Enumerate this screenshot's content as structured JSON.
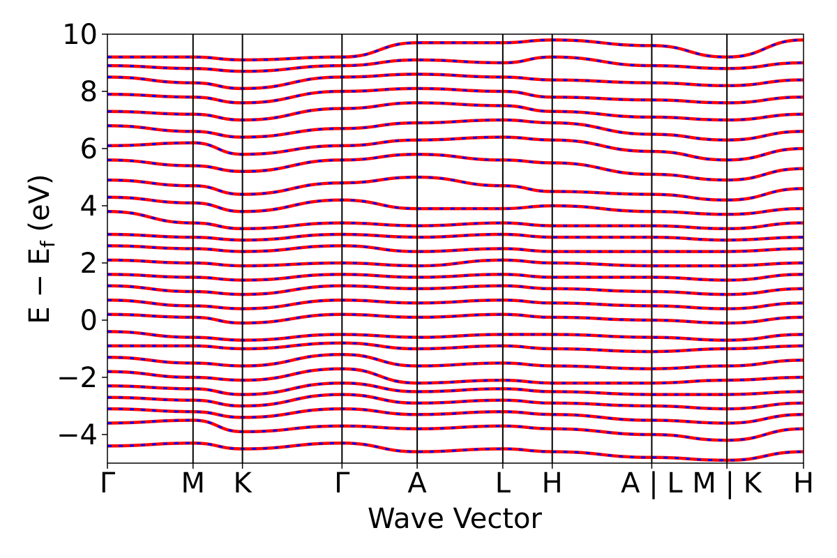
{
  "chart_data": {
    "type": "line",
    "title": "",
    "xlabel": "Wave Vector",
    "ylabel": "E − E_f (eV)",
    "ylabel_main": "E − E",
    "ylabel_sub": "f",
    "ylabel_unit": " (eV)",
    "ylim": [
      -5,
      10
    ],
    "yticks": [
      -4,
      -2,
      0,
      2,
      4,
      6,
      8,
      10
    ],
    "ytick_labels": [
      "−4",
      "−2",
      "0",
      "2",
      "4",
      "6",
      "8",
      "10"
    ],
    "xlim": [
      0,
      1
    ],
    "kpath": [
      {
        "x": 0.0,
        "label": "Γ"
      },
      {
        "x": 0.123,
        "label": "M"
      },
      {
        "x": 0.194,
        "label": "K"
      },
      {
        "x": 0.337,
        "label": "Γ"
      },
      {
        "x": 0.445,
        "label": "A"
      },
      {
        "x": 0.568,
        "label": "L"
      },
      {
        "x": 0.639,
        "label": "H"
      },
      {
        "x": 0.782,
        "label": "A | L"
      },
      {
        "x": 0.89,
        "label": "M | K"
      },
      {
        "x": 1.0,
        "label": "H"
      }
    ],
    "grid": false,
    "legend": "none",
    "colors": {
      "spin_up": "#0000ff",
      "spin_down": "#ff0000",
      "axes": "#000000"
    },
    "series": [
      {
        "x": [
          0.0,
          0.123,
          0.194,
          0.337,
          0.445,
          0.568,
          0.639,
          0.782,
          0.89,
          1.0
        ],
        "y": [
          -4.4,
          -4.3,
          -4.5,
          -4.3,
          -4.6,
          -4.5,
          -4.6,
          -4.8,
          -4.9,
          -4.6
        ]
      },
      {
        "x": [
          0.0,
          0.123,
          0.194,
          0.337,
          0.445,
          0.568,
          0.639,
          0.782,
          0.89,
          1.0
        ],
        "y": [
          -3.6,
          -3.5,
          -3.9,
          -3.7,
          -3.8,
          -3.7,
          -3.8,
          -4.0,
          -4.2,
          -3.8
        ]
      },
      {
        "x": [
          0.0,
          0.123,
          0.194,
          0.337,
          0.445,
          0.568,
          0.639,
          0.782,
          0.89,
          1.0
        ],
        "y": [
          -3.1,
          -3.2,
          -3.4,
          -3.1,
          -3.3,
          -3.2,
          -3.3,
          -3.5,
          -3.6,
          -3.3
        ]
      },
      {
        "x": [
          0.0,
          0.123,
          0.194,
          0.337,
          0.445,
          0.568,
          0.639,
          0.782,
          0.89,
          1.0
        ],
        "y": [
          -2.7,
          -2.8,
          -3.0,
          -2.6,
          -2.9,
          -2.8,
          -2.9,
          -3.0,
          -3.1,
          -2.9
        ]
      },
      {
        "x": [
          0.0,
          0.123,
          0.194,
          0.337,
          0.445,
          0.568,
          0.639,
          0.782,
          0.89,
          1.0
        ],
        "y": [
          -2.3,
          -2.4,
          -2.6,
          -2.2,
          -2.5,
          -2.4,
          -2.5,
          -2.6,
          -2.6,
          -2.5
        ]
      },
      {
        "x": [
          0.0,
          0.123,
          0.194,
          0.337,
          0.445,
          0.568,
          0.639,
          0.782,
          0.89,
          1.0
        ],
        "y": [
          -1.8,
          -2.0,
          -2.1,
          -1.7,
          -2.2,
          -2.1,
          -2.2,
          -2.2,
          -2.1,
          -2.0
        ]
      },
      {
        "x": [
          0.0,
          0.123,
          0.194,
          0.337,
          0.445,
          0.568,
          0.639,
          0.782,
          0.89,
          1.0
        ],
        "y": [
          -1.3,
          -1.5,
          -1.6,
          -1.2,
          -1.6,
          -1.5,
          -1.6,
          -1.7,
          -1.6,
          -1.4
        ]
      },
      {
        "x": [
          0.0,
          0.123,
          0.194,
          0.337,
          0.445,
          0.568,
          0.639,
          0.782,
          0.89,
          1.0
        ],
        "y": [
          -0.9,
          -0.9,
          -1.0,
          -0.8,
          -1.0,
          -0.9,
          -1.0,
          -1.1,
          -1.0,
          -0.9
        ]
      },
      {
        "x": [
          0.0,
          0.123,
          0.194,
          0.337,
          0.445,
          0.568,
          0.639,
          0.782,
          0.89,
          1.0
        ],
        "y": [
          -0.4,
          -0.6,
          -0.7,
          -0.5,
          -0.6,
          -0.5,
          -0.5,
          -0.6,
          -0.7,
          -0.5
        ]
      },
      {
        "x": [
          0.0,
          0.123,
          0.194,
          0.337,
          0.445,
          0.568,
          0.639,
          0.782,
          0.89,
          1.0
        ],
        "y": [
          0.2,
          0.1,
          -0.1,
          0.2,
          0.1,
          0.2,
          0.1,
          0.0,
          -0.1,
          0.1
        ]
      },
      {
        "x": [
          0.0,
          0.123,
          0.194,
          0.337,
          0.445,
          0.568,
          0.639,
          0.782,
          0.89,
          1.0
        ],
        "y": [
          0.7,
          0.5,
          0.4,
          0.7,
          0.6,
          0.7,
          0.6,
          0.5,
          0.4,
          0.6
        ]
      },
      {
        "x": [
          0.0,
          0.123,
          0.194,
          0.337,
          0.445,
          0.568,
          0.639,
          0.782,
          0.89,
          1.0
        ],
        "y": [
          1.2,
          1.0,
          0.9,
          1.2,
          1.1,
          1.2,
          1.1,
          1.0,
          0.9,
          1.1
        ]
      },
      {
        "x": [
          0.0,
          0.123,
          0.194,
          0.337,
          0.445,
          0.568,
          0.639,
          0.782,
          0.89,
          1.0
        ],
        "y": [
          1.6,
          1.5,
          1.4,
          1.6,
          1.5,
          1.6,
          1.5,
          1.5,
          1.4,
          1.6
        ]
      },
      {
        "x": [
          0.0,
          0.123,
          0.194,
          0.337,
          0.445,
          0.568,
          0.639,
          0.782,
          0.89,
          1.0
        ],
        "y": [
          2.1,
          2.0,
          1.9,
          2.0,
          1.9,
          2.1,
          2.0,
          1.9,
          1.9,
          2.0
        ]
      },
      {
        "x": [
          0.0,
          0.123,
          0.194,
          0.337,
          0.445,
          0.568,
          0.639,
          0.782,
          0.89,
          1.0
        ],
        "y": [
          2.6,
          2.5,
          2.4,
          2.6,
          2.4,
          2.5,
          2.4,
          2.4,
          2.4,
          2.5
        ]
      },
      {
        "x": [
          0.0,
          0.123,
          0.194,
          0.337,
          0.445,
          0.568,
          0.639,
          0.782,
          0.89,
          1.0
        ],
        "y": [
          3.0,
          2.9,
          2.8,
          3.0,
          2.9,
          3.0,
          2.9,
          2.9,
          2.8,
          2.9
        ]
      },
      {
        "x": [
          0.0,
          0.123,
          0.194,
          0.337,
          0.445,
          0.568,
          0.639,
          0.782,
          0.89,
          1.0
        ],
        "y": [
          3.8,
          3.4,
          3.2,
          3.4,
          3.3,
          3.4,
          3.3,
          3.3,
          3.2,
          3.4
        ]
      },
      {
        "x": [
          0.0,
          0.123,
          0.194,
          0.337,
          0.445,
          0.568,
          0.639,
          0.782,
          0.89,
          1.0
        ],
        "y": [
          4.3,
          4.1,
          3.8,
          4.2,
          3.9,
          3.9,
          4.0,
          3.8,
          3.7,
          3.9
        ]
      },
      {
        "x": [
          0.0,
          0.123,
          0.194,
          0.337,
          0.445,
          0.568,
          0.639,
          0.782,
          0.89,
          1.0
        ],
        "y": [
          4.9,
          4.7,
          4.4,
          4.8,
          5.0,
          4.7,
          4.5,
          4.4,
          4.2,
          4.6
        ]
      },
      {
        "x": [
          0.0,
          0.123,
          0.194,
          0.337,
          0.445,
          0.568,
          0.639,
          0.782,
          0.89,
          1.0
        ],
        "y": [
          5.6,
          5.4,
          5.2,
          5.6,
          5.8,
          5.6,
          5.5,
          5.1,
          4.9,
          5.3
        ]
      },
      {
        "x": [
          0.0,
          0.123,
          0.194,
          0.337,
          0.445,
          0.568,
          0.639,
          0.782,
          0.89,
          1.0
        ],
        "y": [
          6.1,
          6.2,
          5.8,
          6.1,
          6.3,
          6.4,
          6.3,
          5.9,
          5.6,
          6.0
        ]
      },
      {
        "x": [
          0.0,
          0.123,
          0.194,
          0.337,
          0.445,
          0.568,
          0.639,
          0.782,
          0.89,
          1.0
        ],
        "y": [
          6.8,
          6.6,
          6.4,
          6.7,
          6.9,
          7.0,
          6.9,
          6.5,
          6.3,
          6.6
        ]
      },
      {
        "x": [
          0.0,
          0.123,
          0.194,
          0.337,
          0.445,
          0.568,
          0.639,
          0.782,
          0.89,
          1.0
        ],
        "y": [
          7.3,
          7.2,
          7.0,
          7.4,
          7.6,
          7.5,
          7.3,
          7.1,
          7.0,
          7.2
        ]
      },
      {
        "x": [
          0.0,
          0.123,
          0.194,
          0.337,
          0.445,
          0.568,
          0.639,
          0.782,
          0.89,
          1.0
        ],
        "y": [
          7.9,
          7.8,
          7.6,
          8.0,
          8.1,
          8.0,
          7.8,
          7.7,
          7.6,
          7.8
        ]
      },
      {
        "x": [
          0.0,
          0.123,
          0.194,
          0.337,
          0.445,
          0.568,
          0.639,
          0.782,
          0.89,
          1.0
        ],
        "y": [
          8.5,
          8.3,
          8.1,
          8.5,
          8.6,
          8.5,
          8.4,
          8.3,
          8.2,
          8.4
        ]
      },
      {
        "x": [
          0.0,
          0.123,
          0.194,
          0.337,
          0.445,
          0.568,
          0.639,
          0.782,
          0.89,
          1.0
        ],
        "y": [
          8.9,
          8.8,
          8.7,
          8.9,
          9.1,
          9.0,
          9.2,
          8.9,
          8.8,
          9.0
        ]
      },
      {
        "x": [
          0.0,
          0.123,
          0.194,
          0.337,
          0.445,
          0.568,
          0.639,
          0.782,
          0.89,
          1.0
        ],
        "y": [
          9.2,
          9.2,
          9.1,
          9.2,
          9.7,
          9.7,
          9.8,
          9.6,
          9.2,
          9.8
        ]
      }
    ]
  }
}
